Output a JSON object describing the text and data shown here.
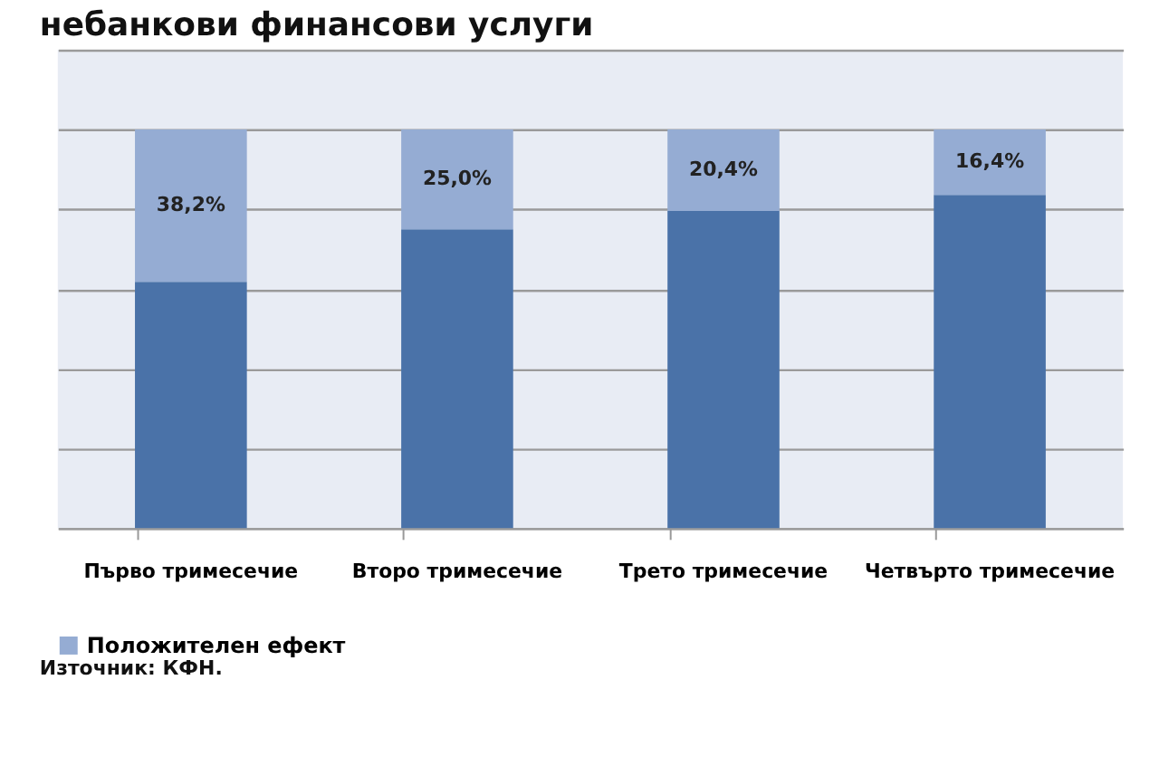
{
  "chart_data": {
    "type": "bar",
    "title": "небанкови финансови услуги",
    "stacked": true,
    "categories": [
      "Първо тримесечие",
      "Второ тримесечие",
      "Трето тримесечие",
      "Четвърто тримесечие"
    ],
    "series": [
      {
        "color": "#4a72a8",
        "values": [
          61.8,
          75.0,
          79.6,
          83.6
        ]
      },
      {
        "name": "Положителен ефект",
        "color": "#95acd3",
        "values": [
          38.2,
          25.0,
          20.4,
          16.4
        ],
        "value_labels": [
          "38,2%",
          "25,0%",
          "20,4%",
          "16,4%"
        ]
      }
    ],
    "ylim": [
      0,
      120
    ],
    "yticks": [
      {
        "value": 0,
        "label": null
      },
      {
        "value": 20,
        "label": null
      },
      {
        "value": 40,
        "label": null
      },
      {
        "value": 60,
        "label": null
      },
      {
        "value": 80,
        "label": null
      },
      {
        "value": 100,
        "label": null
      },
      {
        "value": 120,
        "label": null
      }
    ],
    "tick_labels": "x",
    "grid": "y",
    "legend": "bottom",
    "annotations": [
      "Източник: КФН."
    ]
  }
}
